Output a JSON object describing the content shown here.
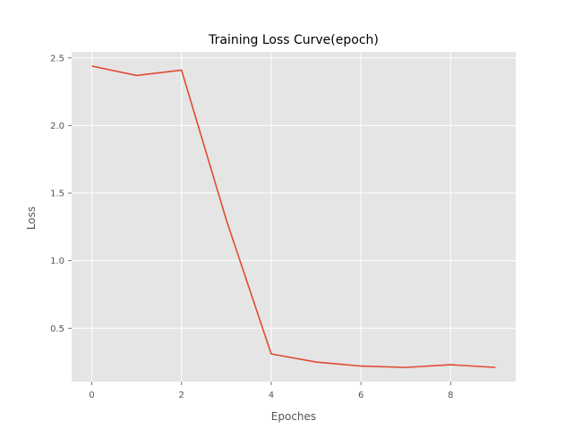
{
  "chart_data": {
    "type": "line",
    "title": "Training Loss Curve(epoch)",
    "xlabel": "Epoches",
    "ylabel": "Loss",
    "xlim": [
      -0.45,
      9.45
    ],
    "ylim": [
      0.105,
      2.545
    ],
    "xticks": [
      0,
      2,
      4,
      6,
      8
    ],
    "yticks": [
      0.5,
      1.0,
      1.5,
      2.0,
      2.5
    ],
    "ytick_labels": [
      "0.5",
      "1.0",
      "1.5",
      "2.0",
      "2.5"
    ],
    "grid": true,
    "series": [
      {
        "x": [
          0,
          1,
          2,
          3,
          4,
          5,
          6,
          7,
          8,
          9
        ],
        "values": [
          2.44,
          2.37,
          2.41,
          1.3,
          0.31,
          0.25,
          0.22,
          0.21,
          0.23,
          0.21
        ],
        "color": "#E24A33"
      }
    ],
    "colors": {
      "plot_background": "#E5E5E5",
      "grid": "#ffffff",
      "text": "#555555"
    }
  }
}
